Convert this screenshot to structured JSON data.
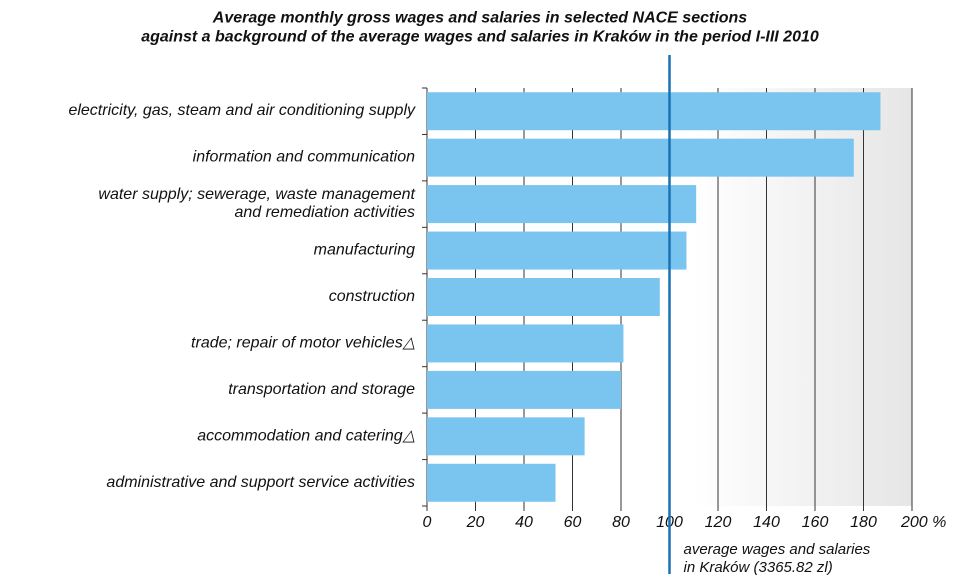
{
  "chart_data": {
    "type": "bar",
    "orientation": "horizontal",
    "title": "Average monthly gross wages and salaries in selected NACE sections\nagainst a background of the average wages and salaries in Kraków in the period I-III 2010",
    "categories": [
      "electricity, gas, steam and air conditioning supply",
      "information and communication",
      "water supply; sewerage, waste management\nand remediation activities",
      "manufacturing",
      "construction",
      "trade; repair of motor vehicles△",
      "transportation and storage",
      "accommodation and catering△",
      "administrative and support service activities"
    ],
    "values": [
      187,
      176,
      111,
      107,
      96,
      81,
      80,
      65,
      53
    ],
    "color": "#7ac5f0",
    "xlim": [
      0,
      200
    ],
    "xticks": [
      0,
      20,
      40,
      60,
      80,
      100,
      120,
      140,
      160,
      180,
      {
        "value": 200,
        "label": "200 %"
      }
    ],
    "grid": true,
    "reference_line": {
      "value": 100,
      "label": "average wages and salaries\nin Kraków (3365.82 zl)",
      "color": "#1a72b5"
    }
  }
}
